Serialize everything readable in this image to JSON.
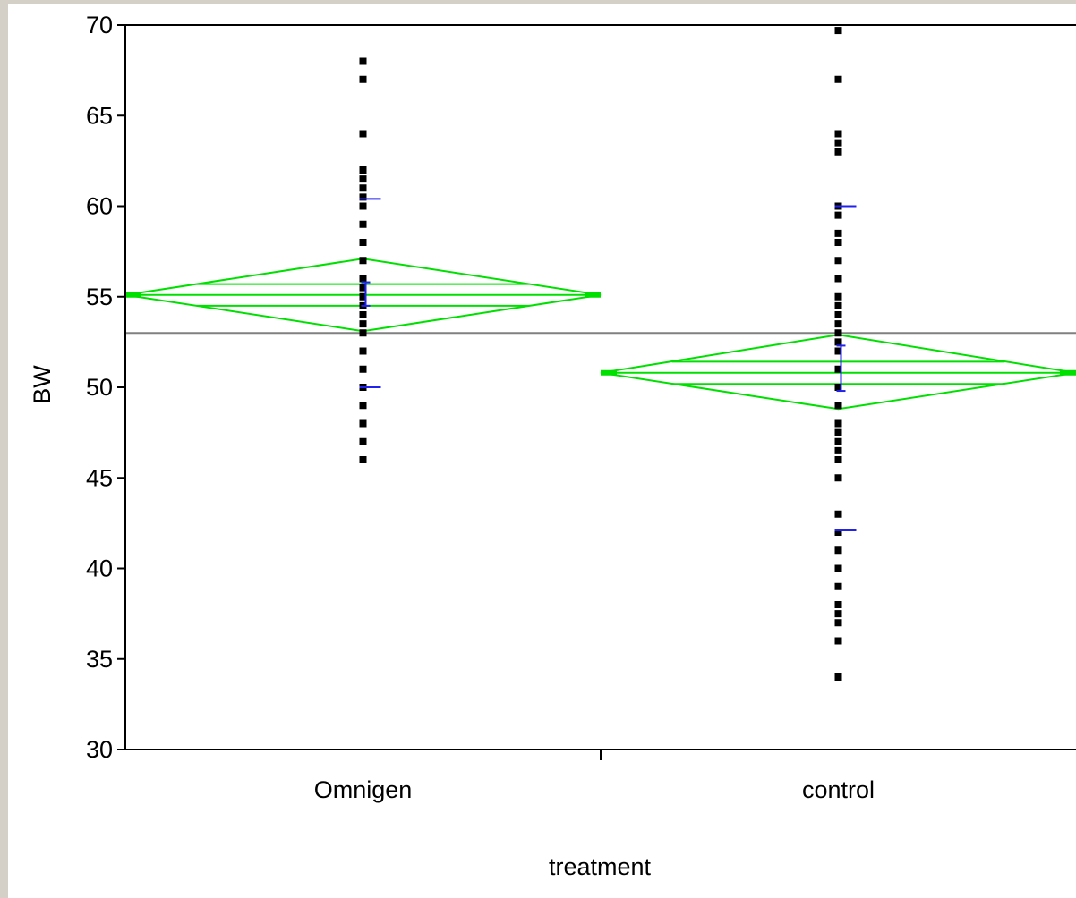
{
  "chart_data": {
    "type": "scatter",
    "subtype": "one-way means diamonds",
    "xlabel": "treatment",
    "ylabel": "BW",
    "ylim": [
      30,
      70
    ],
    "y_ticks": [
      30,
      35,
      40,
      45,
      50,
      55,
      60,
      65,
      70
    ],
    "categories": [
      "Omnigen",
      "control"
    ],
    "grand_mean": 53.0,
    "groups": [
      {
        "category": "Omnigen",
        "points": [
          68,
          67,
          64,
          62,
          61.5,
          61,
          60.5,
          60,
          59,
          58,
          57,
          56,
          55.5,
          55,
          54.5,
          54,
          53.5,
          53,
          52,
          51,
          50,
          49,
          48,
          47,
          46
        ],
        "mean": 55.1,
        "ci_lower": 53.1,
        "ci_upper": 57.1,
        "std_err_upper": 55.8,
        "std_err_lower": 54.5,
        "std_dev_upper": 60.4,
        "std_dev_lower": 50.0
      },
      {
        "category": "control",
        "points": [
          69.7,
          67,
          64,
          63.5,
          63,
          60,
          59.5,
          58.5,
          58,
          57,
          56,
          55,
          54.5,
          54,
          53.5,
          53,
          52.5,
          52,
          51,
          50,
          49,
          48,
          47.5,
          47,
          46.5,
          46,
          45,
          43,
          42,
          41,
          40,
          39,
          38,
          37.5,
          37,
          36,
          34
        ],
        "mean": 50.8,
        "ci_lower": 48.8,
        "ci_upper": 52.9,
        "std_err_upper": 52.3,
        "std_err_lower": 49.8,
        "std_dev_upper": 60.0,
        "std_dev_lower": 42.1
      }
    ],
    "colors": {
      "points": "#000000",
      "diamond": "#00e000",
      "std_bars": "#2222ee",
      "grand_mean_line": "#808080",
      "axis": "#000000"
    }
  }
}
